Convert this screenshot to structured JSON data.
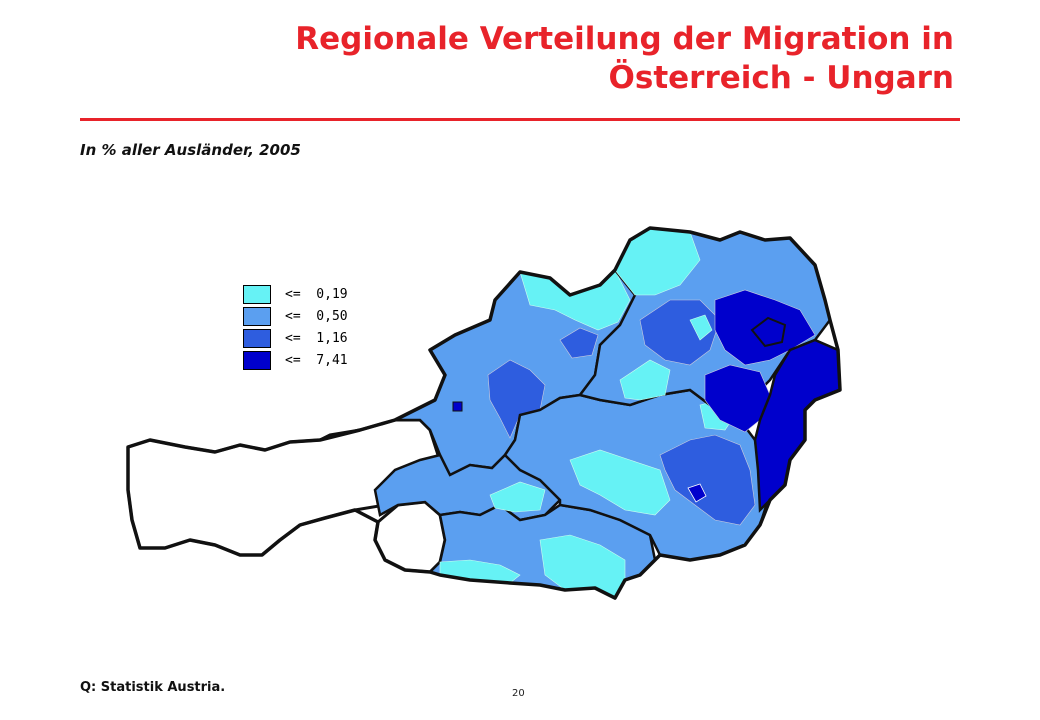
{
  "title": "Regionale Verteilung der Migration in Österreich - Ungarn",
  "subtitle": "In % aller Ausländer, 2005",
  "legend": [
    {
      "label": "<=  0,19",
      "color": "#66f2f5"
    },
    {
      "label": "<=  0,50",
      "color": "#5b9ff0"
    },
    {
      "label": "<=  1,16",
      "color": "#2e5ddf"
    },
    {
      "label": "<=  7,41",
      "color": "#0000cc"
    }
  ],
  "source": "Q: Statistik Austria.",
  "page_number": "20"
}
